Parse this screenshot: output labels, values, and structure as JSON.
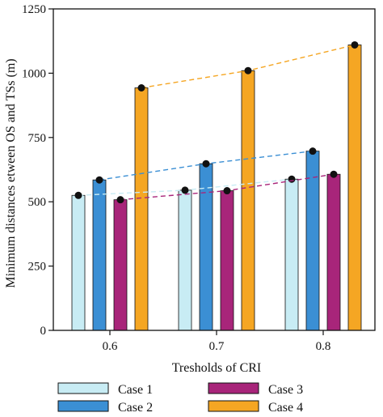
{
  "chart_data": {
    "type": "bar",
    "title": "",
    "xlabel": "Tresholds of CRI",
    "ylabel": "Minimum distances etween OS and TSs (m)",
    "categories": [
      "0.6",
      "0.7",
      "0.8"
    ],
    "ylim": [
      0,
      1250
    ],
    "yticks": [
      0,
      250,
      500,
      750,
      1000,
      1250
    ],
    "series": [
      {
        "name": "Case 1",
        "values": [
          525,
          545,
          588
        ],
        "color": "#c8ecf4"
      },
      {
        "name": "Case 2",
        "values": [
          585,
          648,
          697
        ],
        "color": "#3b8fd4"
      },
      {
        "name": "Case 3",
        "values": [
          508,
          543,
          607
        ],
        "color": "#a8257a"
      },
      {
        "name": "Case 4",
        "values": [
          943,
          1010,
          1110
        ],
        "color": "#f5a623"
      }
    ],
    "trend_lines": "dashed lines connecting each series across thresholds, with black point markers on bar tops",
    "legend_placement": "bottom",
    "grid": false
  }
}
